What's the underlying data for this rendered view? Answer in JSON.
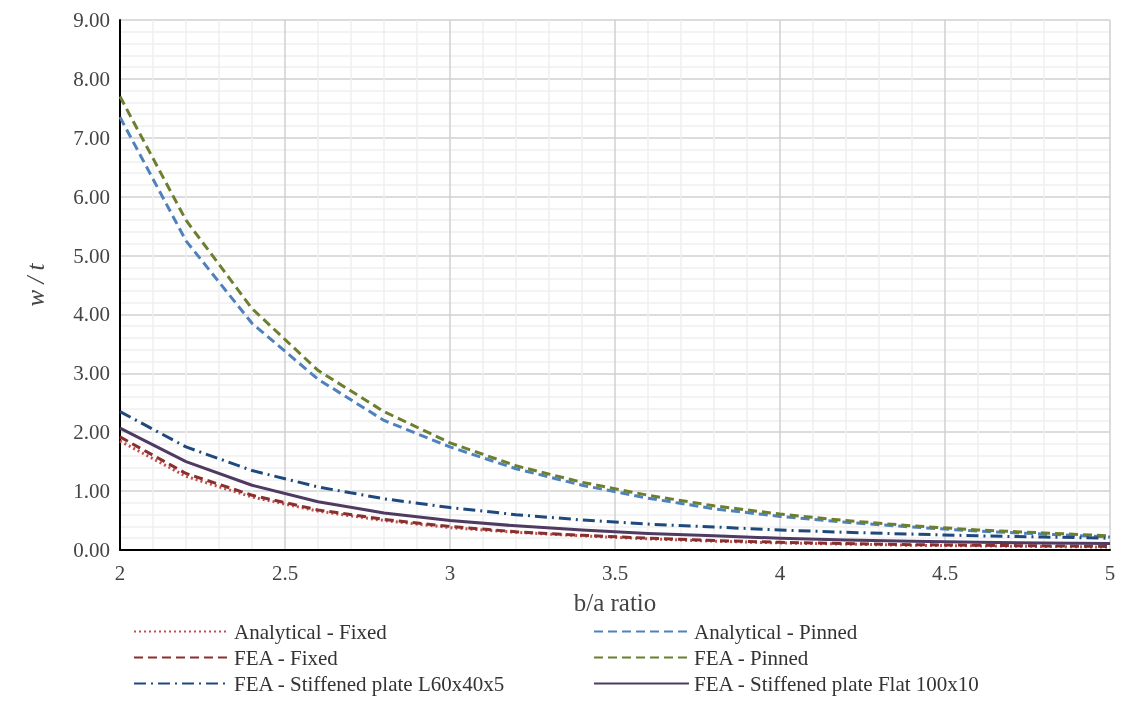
{
  "chart_data": {
    "type": "line",
    "xlabel": "b/a ratio",
    "ylabel": "w / t",
    "x": [
      2,
      2.2,
      2.4,
      2.6,
      2.8,
      3,
      3.2,
      3.4,
      3.6,
      3.8,
      4,
      4.2,
      4.4,
      4.6,
      4.8,
      5
    ],
    "xlim": [
      2,
      5
    ],
    "xticks": [
      2,
      2.5,
      3,
      3.5,
      4,
      4.5,
      5
    ],
    "ylim": [
      0,
      9
    ],
    "yticks": [
      {
        "value": 0,
        "label": "0.00"
      },
      {
        "value": 1,
        "label": "1.00"
      },
      {
        "value": 2,
        "label": "2.00"
      },
      {
        "value": 3,
        "label": "3.00"
      },
      {
        "value": 4,
        "label": "4.00"
      },
      {
        "value": 5,
        "label": "5.00"
      },
      {
        "value": 6,
        "label": "6.00"
      },
      {
        "value": 7,
        "label": "7.00"
      },
      {
        "value": 8,
        "label": "8.00"
      },
      {
        "value": 9,
        "label": "9.00"
      }
    ],
    "grid": true,
    "legend": "bottom",
    "marker": "none",
    "series": [
      {
        "name": "Analytical - Fixed",
        "color": "#c0504d",
        "line_style": "dotted",
        "values": [
          1.85,
          1.25,
          0.9,
          0.66,
          0.5,
          0.38,
          0.3,
          0.24,
          0.19,
          0.15,
          0.12,
          0.1,
          0.08,
          0.07,
          0.06,
          0.05
        ]
      },
      {
        "name": "Analytical - Pinned",
        "color": "#4f81bd",
        "line_style": "dashed",
        "values": [
          7.35,
          5.25,
          3.85,
          2.9,
          2.2,
          1.75,
          1.38,
          1.1,
          0.88,
          0.7,
          0.57,
          0.47,
          0.39,
          0.32,
          0.27,
          0.22
        ]
      },
      {
        "name": "FEA - Fixed",
        "color": "#8b2e2e",
        "line_style": "dashed",
        "values": [
          1.92,
          1.3,
          0.93,
          0.68,
          0.52,
          0.4,
          0.31,
          0.25,
          0.2,
          0.16,
          0.13,
          0.11,
          0.09,
          0.08,
          0.07,
          0.06
        ]
      },
      {
        "name": "FEA - Pinned",
        "color": "#6b7f2f",
        "line_style": "dashed",
        "values": [
          7.7,
          5.6,
          4.1,
          3.05,
          2.35,
          1.82,
          1.43,
          1.15,
          0.93,
          0.75,
          0.61,
          0.5,
          0.41,
          0.34,
          0.29,
          0.24
        ]
      },
      {
        "name": "FEA - Stiffened plate L60x40x5",
        "color": "#1f497d",
        "line_style": "dashdot",
        "values": [
          2.35,
          1.75,
          1.35,
          1.07,
          0.87,
          0.72,
          0.6,
          0.51,
          0.44,
          0.39,
          0.34,
          0.3,
          0.27,
          0.24,
          0.22,
          0.2
        ]
      },
      {
        "name": "FEA - Stiffened plate Flat 100x10",
        "color": "#4f3b62",
        "line_style": "solid",
        "values": [
          2.07,
          1.5,
          1.1,
          0.82,
          0.63,
          0.5,
          0.41,
          0.34,
          0.28,
          0.24,
          0.2,
          0.17,
          0.15,
          0.13,
          0.12,
          0.11
        ]
      }
    ]
  }
}
